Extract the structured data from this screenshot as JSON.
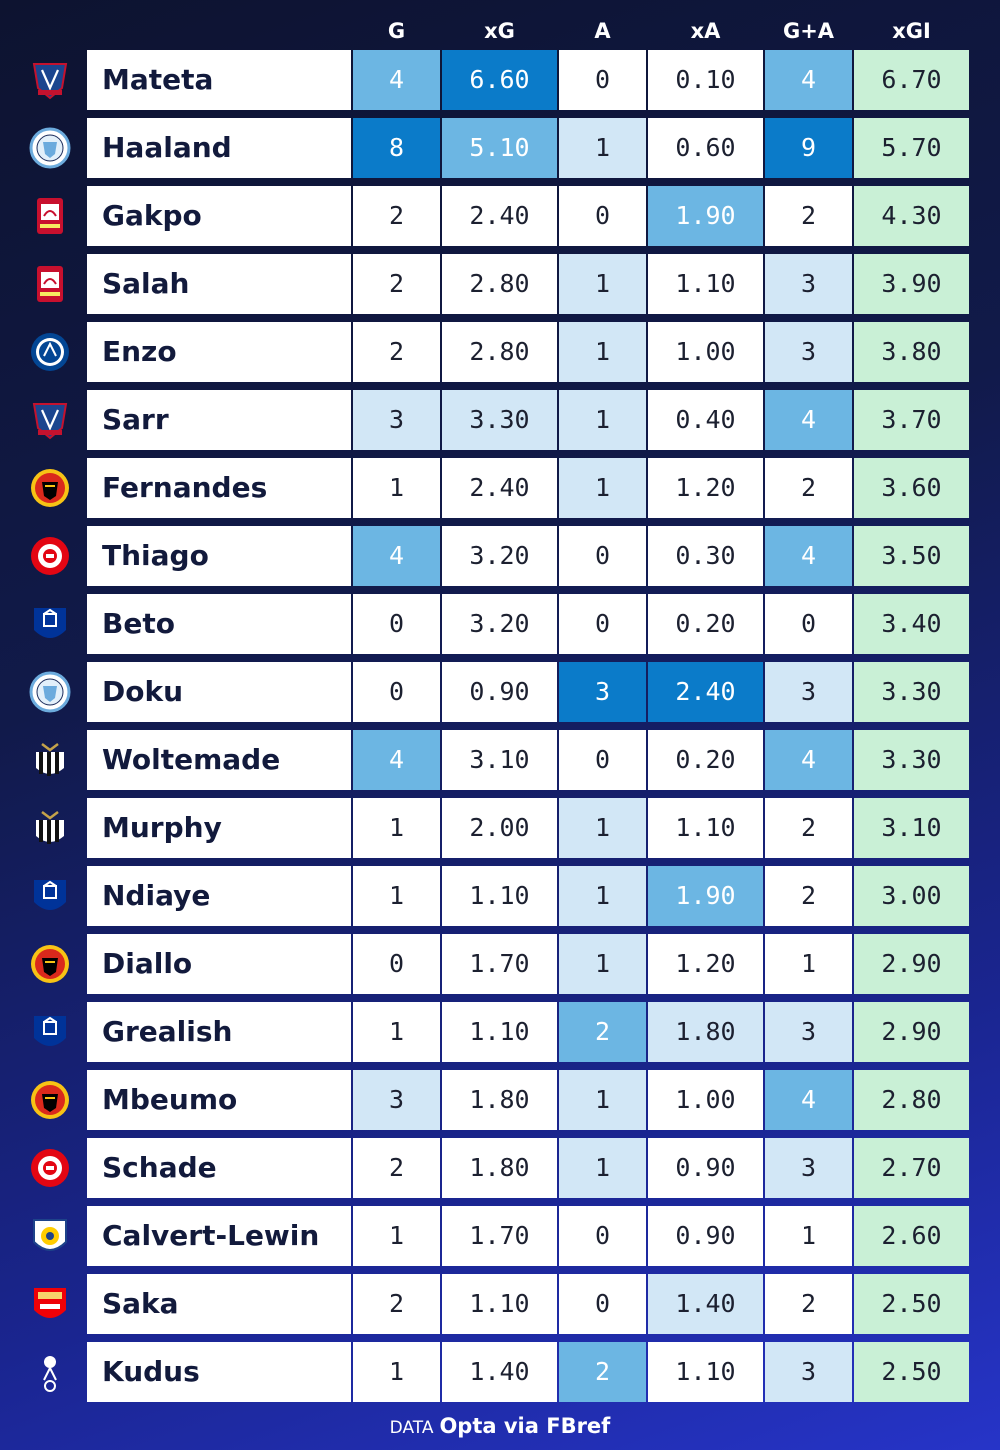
{
  "columns": [
    "G",
    "xG",
    "A",
    "xA",
    "G+A",
    "xGI"
  ],
  "footer": {
    "prefix": "DATA",
    "source": "Opta via FBref"
  },
  "colors": {
    "dark": "#0b7bc9",
    "mid": "#6cb6e3",
    "light": "#d2e7f6",
    "white": "#ffffff",
    "xgi": "#c9f0d6",
    "name_bg": "#ffffff"
  },
  "chart_data": {
    "type": "table",
    "columns": [
      "G",
      "xG",
      "A",
      "xA",
      "G+A",
      "xGI"
    ],
    "rows": [
      {
        "player": "Mateta",
        "club": "crystal-palace",
        "values": [
          "4",
          "6.60",
          "0",
          "0.10",
          "4",
          "6.70"
        ],
        "shade": [
          "mid",
          "dark",
          "white",
          "white",
          "mid",
          "xgi"
        ]
      },
      {
        "player": "Haaland",
        "club": "manchester-city",
        "values": [
          "8",
          "5.10",
          "1",
          "0.60",
          "9",
          "5.70"
        ],
        "shade": [
          "dark",
          "mid",
          "light",
          "white",
          "dark",
          "xgi"
        ]
      },
      {
        "player": "Gakpo",
        "club": "liverpool",
        "values": [
          "2",
          "2.40",
          "0",
          "1.90",
          "2",
          "4.30"
        ],
        "shade": [
          "white",
          "white",
          "white",
          "mid",
          "white",
          "xgi"
        ]
      },
      {
        "player": "Salah",
        "club": "liverpool",
        "values": [
          "2",
          "2.80",
          "1",
          "1.10",
          "3",
          "3.90"
        ],
        "shade": [
          "white",
          "white",
          "light",
          "white",
          "light",
          "xgi"
        ]
      },
      {
        "player": "Enzo",
        "club": "chelsea",
        "values": [
          "2",
          "2.80",
          "1",
          "1.00",
          "3",
          "3.80"
        ],
        "shade": [
          "white",
          "white",
          "light",
          "white",
          "light",
          "xgi"
        ]
      },
      {
        "player": "Sarr",
        "club": "crystal-palace",
        "values": [
          "3",
          "3.30",
          "1",
          "0.40",
          "4",
          "3.70"
        ],
        "shade": [
          "light",
          "light",
          "light",
          "white",
          "mid",
          "xgi"
        ]
      },
      {
        "player": "Fernandes",
        "club": "manchester-united",
        "values": [
          "1",
          "2.40",
          "1",
          "1.20",
          "2",
          "3.60"
        ],
        "shade": [
          "white",
          "white",
          "light",
          "white",
          "white",
          "xgi"
        ]
      },
      {
        "player": "Thiago",
        "club": "brentford",
        "values": [
          "4",
          "3.20",
          "0",
          "0.30",
          "4",
          "3.50"
        ],
        "shade": [
          "mid",
          "white",
          "white",
          "white",
          "mid",
          "xgi"
        ]
      },
      {
        "player": "Beto",
        "club": "everton",
        "values": [
          "0",
          "3.20",
          "0",
          "0.20",
          "0",
          "3.40"
        ],
        "shade": [
          "white",
          "white",
          "white",
          "white",
          "white",
          "xgi"
        ]
      },
      {
        "player": "Doku",
        "club": "manchester-city",
        "values": [
          "0",
          "0.90",
          "3",
          "2.40",
          "3",
          "3.30"
        ],
        "shade": [
          "white",
          "white",
          "dark",
          "dark",
          "light",
          "xgi"
        ]
      },
      {
        "player": "Woltemade",
        "club": "newcastle",
        "values": [
          "4",
          "3.10",
          "0",
          "0.20",
          "4",
          "3.30"
        ],
        "shade": [
          "mid",
          "white",
          "white",
          "white",
          "mid",
          "xgi"
        ]
      },
      {
        "player": "Murphy",
        "club": "newcastle",
        "values": [
          "1",
          "2.00",
          "1",
          "1.10",
          "2",
          "3.10"
        ],
        "shade": [
          "white",
          "white",
          "light",
          "white",
          "white",
          "xgi"
        ]
      },
      {
        "player": "Ndiaye",
        "club": "everton",
        "values": [
          "1",
          "1.10",
          "1",
          "1.90",
          "2",
          "3.00"
        ],
        "shade": [
          "white",
          "white",
          "light",
          "mid",
          "white",
          "xgi"
        ]
      },
      {
        "player": "Diallo",
        "club": "manchester-united",
        "values": [
          "0",
          "1.70",
          "1",
          "1.20",
          "1",
          "2.90"
        ],
        "shade": [
          "white",
          "white",
          "light",
          "white",
          "white",
          "xgi"
        ]
      },
      {
        "player": "Grealish",
        "club": "everton",
        "values": [
          "1",
          "1.10",
          "2",
          "1.80",
          "3",
          "2.90"
        ],
        "shade": [
          "white",
          "white",
          "mid",
          "light",
          "light",
          "xgi"
        ]
      },
      {
        "player": "Mbeumo",
        "club": "manchester-united",
        "values": [
          "3",
          "1.80",
          "1",
          "1.00",
          "4",
          "2.80"
        ],
        "shade": [
          "light",
          "white",
          "light",
          "white",
          "mid",
          "xgi"
        ]
      },
      {
        "player": "Schade",
        "club": "brentford",
        "values": [
          "2",
          "1.80",
          "1",
          "0.90",
          "3",
          "2.70"
        ],
        "shade": [
          "white",
          "white",
          "light",
          "white",
          "light",
          "xgi"
        ]
      },
      {
        "player": "Calvert-Lewin",
        "club": "leeds",
        "values": [
          "1",
          "1.70",
          "0",
          "0.90",
          "1",
          "2.60"
        ],
        "shade": [
          "white",
          "white",
          "white",
          "white",
          "white",
          "xgi"
        ]
      },
      {
        "player": "Saka",
        "club": "arsenal",
        "values": [
          "2",
          "1.10",
          "0",
          "1.40",
          "2",
          "2.50"
        ],
        "shade": [
          "white",
          "white",
          "white",
          "light",
          "white",
          "xgi"
        ]
      },
      {
        "player": "Kudus",
        "club": "tottenham",
        "values": [
          "1",
          "1.40",
          "2",
          "1.10",
          "3",
          "2.50"
        ],
        "shade": [
          "white",
          "white",
          "mid",
          "white",
          "light",
          "xgi"
        ]
      }
    ]
  }
}
